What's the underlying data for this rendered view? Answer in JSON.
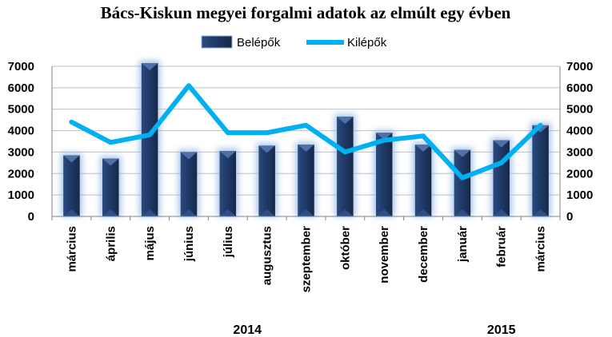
{
  "colors": {
    "bar": "#1f3864",
    "bar_light": "#4f71a8",
    "bar_glow": "#8db3e2",
    "line": "#00b0f0",
    "grid": "#bfbfbf",
    "axis": "#808080"
  },
  "chart_data": {
    "type": "bar+line",
    "title": "Bács-Kiskun megyei forgalmi adatok az elmúlt egy évben",
    "categories": [
      "március",
      "április",
      "május",
      "június",
      "július",
      "augusztus",
      "szeptember",
      "október",
      "november",
      "december",
      "január",
      "február",
      "március"
    ],
    "year_labels": [
      {
        "label": "2014",
        "category_index": 4.5
      },
      {
        "label": "2015",
        "category_index": 11
      }
    ],
    "series": [
      {
        "name": "Belépők",
        "type": "bar",
        "axis": "left",
        "values": [
          2850,
          2700,
          7150,
          3000,
          3050,
          3300,
          3350,
          4650,
          3900,
          3350,
          3100,
          3550,
          4250
        ]
      },
      {
        "name": "Kilépők",
        "type": "line",
        "axis": "right",
        "values": [
          4400,
          3450,
          3800,
          6100,
          3900,
          3900,
          4250,
          3000,
          3550,
          3750,
          1800,
          2500,
          4250
        ]
      }
    ],
    "left_axis": {
      "ylim": [
        0,
        7000
      ],
      "ticks": [
        "0",
        "1000",
        "2000",
        "3000",
        "4000",
        "5000",
        "6000",
        "7000"
      ]
    },
    "right_axis": {
      "ylim": [
        0,
        7000
      ],
      "ticks": [
        "0",
        "1000",
        "2000",
        "3000",
        "4000",
        "5000",
        "6000",
        "7000"
      ]
    },
    "grid": true,
    "legend": {
      "position": "top-center",
      "items": [
        "Belépők",
        "Kilépők"
      ]
    }
  }
}
